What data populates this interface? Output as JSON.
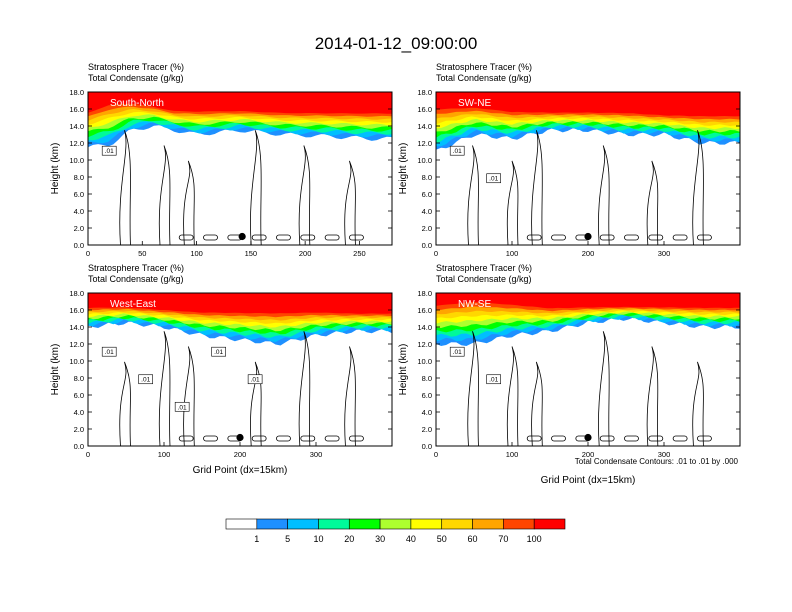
{
  "figure": {
    "title": "2014-01-12_09:00:00",
    "contour_note": "Total Condensate Contours: .01 to .01 by .000"
  },
  "colorbar": {
    "colors": [
      "#ffffff",
      "#1e90ff",
      "#00bfff",
      "#00fa9a",
      "#00ff00",
      "#adff2f",
      "#ffff00",
      "#ffd700",
      "#ffa500",
      "#ff4500",
      "#ff0000"
    ],
    "labels": [
      "1",
      "5",
      "10",
      "20",
      "30",
      "40",
      "50",
      "60",
      "70",
      "100"
    ]
  },
  "panels": [
    {
      "subtitle_line1": "Stratosphere Tracer   (%)",
      "subtitle_line2": "Total Condensate   (g/kg)",
      "section_label": "South-North",
      "ylabel": "Height (km)",
      "xlabel": "",
      "x_ticks": [
        "0",
        "50",
        "100",
        "150",
        "200",
        "250"
      ],
      "y_ticks": [
        "0.0",
        "2.0",
        "4.0",
        "6.0",
        "8.0",
        "10.0",
        "12.0",
        "14.0",
        "16.0",
        "18.0"
      ],
      "contour_labels": [
        ".01"
      ]
    },
    {
      "subtitle_line1": "Stratosphere Tracer   (%)",
      "subtitle_line2": "Total Condensate   (g/kg)",
      "section_label": "SW-NE",
      "ylabel": "Height (km)",
      "xlabel": "",
      "x_ticks": [
        "0",
        "100",
        "200",
        "300"
      ],
      "y_ticks": [
        "0.0",
        "2.0",
        "4.0",
        "6.0",
        "8.0",
        "10.0",
        "12.0",
        "14.0",
        "16.0",
        "18.0"
      ],
      "contour_labels": [
        ".01",
        ".01"
      ]
    },
    {
      "subtitle_line1": "Stratosphere Tracer   (%)",
      "subtitle_line2": "Total Condensate   (g/kg)",
      "section_label": "West-East",
      "ylabel": "Height (km)",
      "xlabel": "Grid Point (dx=15km)",
      "x_ticks": [
        "0",
        "100",
        "200",
        "300"
      ],
      "y_ticks": [
        "0.0",
        "2.0",
        "4.0",
        "6.0",
        "8.0",
        "10.0",
        "12.0",
        "14.0",
        "16.0",
        "18.0"
      ],
      "contour_labels": [
        ".01",
        ".01",
        ".01",
        ".01",
        ".01"
      ]
    },
    {
      "subtitle_line1": "Stratosphere Tracer   (%)",
      "subtitle_line2": "Total Condensate   (g/kg)",
      "section_label": "NW-SE",
      "ylabel": "Height (km)",
      "xlabel": "Grid Point (dx=15km)",
      "x_ticks": [
        "0",
        "100",
        "200",
        "300"
      ],
      "y_ticks": [
        "0.0",
        "2.0",
        "4.0",
        "6.0",
        "8.0",
        "10.0",
        "12.0",
        "14.0",
        "16.0",
        "18.0"
      ],
      "contour_labels": [
        ".01",
        ".01"
      ]
    }
  ],
  "chart_data": [
    {
      "type": "heatmap",
      "title": "2014-01-12_09:00:00",
      "panel": "South-North",
      "xlabel": "",
      "ylabel": "Height (km)",
      "xlim": [
        0,
        280
      ],
      "ylim": [
        0,
        18
      ],
      "tracer_levels_percent": [
        1,
        5,
        10,
        20,
        30,
        40,
        50,
        60,
        70,
        100
      ],
      "tracer_band_km": {
        "x": [
          0,
          20,
          40,
          60,
          80,
          100,
          140,
          180,
          220,
          260,
          280
        ],
        "top_over_90": [
          16.0,
          17.0,
          17.0,
          16.5,
          16.0,
          16.0,
          16.0,
          15.8,
          15.8,
          15.8,
          15.8
        ],
        "base_1": [
          11.5,
          11.8,
          13.5,
          14.0,
          13.5,
          13.0,
          13.5,
          13.0,
          12.8,
          12.5,
          12.5
        ]
      },
      "station_marker": {
        "x": 142,
        "y": 1.0
      }
    },
    {
      "type": "heatmap",
      "panel": "SW-NE",
      "xlabel": "",
      "ylabel": "Height (km)",
      "xlim": [
        0,
        400
      ],
      "ylim": [
        0,
        18
      ],
      "tracer_levels_percent": [
        1,
        5,
        10,
        20,
        30,
        40,
        50,
        60,
        70,
        100
      ],
      "tracer_band_km": {
        "x": [
          0,
          50,
          100,
          150,
          200,
          250,
          300,
          350,
          400
        ],
        "top_over_90": [
          16.5,
          16.5,
          16.0,
          15.8,
          15.8,
          15.8,
          15.5,
          15.5,
          15.5
        ],
        "base_1": [
          11.0,
          13.0,
          12.5,
          13.5,
          13.5,
          13.0,
          13.0,
          12.0,
          12.0
        ]
      },
      "station_marker": {
        "x": 200,
        "y": 1.0
      }
    },
    {
      "type": "heatmap",
      "panel": "West-East",
      "xlabel": "Grid Point (dx=15km)",
      "ylabel": "Height (km)",
      "xlim": [
        0,
        400
      ],
      "ylim": [
        0,
        18
      ],
      "tracer_levels_percent": [
        1,
        5,
        10,
        20,
        30,
        40,
        50,
        60,
        70,
        100
      ],
      "tracer_band_km": {
        "x": [
          0,
          50,
          100,
          150,
          200,
          250,
          300,
          350,
          400
        ],
        "top_over_90": [
          16.5,
          16.5,
          16.2,
          16.0,
          16.0,
          16.0,
          16.0,
          15.8,
          15.8
        ],
        "base_1": [
          14.0,
          14.5,
          14.0,
          13.0,
          12.5,
          12.0,
          13.0,
          13.5,
          13.5
        ]
      },
      "station_marker": {
        "x": 200,
        "y": 1.0
      }
    },
    {
      "type": "heatmap",
      "panel": "NW-SE",
      "xlabel": "Grid Point (dx=15km)",
      "ylabel": "Height (km)",
      "xlim": [
        0,
        400
      ],
      "ylim": [
        0,
        18
      ],
      "tracer_levels_percent": [
        1,
        5,
        10,
        20,
        30,
        40,
        50,
        60,
        70,
        100
      ],
      "tracer_band_km": {
        "x": [
          0,
          50,
          100,
          150,
          200,
          250,
          300,
          350,
          400
        ],
        "top_over_90": [
          17.0,
          17.5,
          17.0,
          16.5,
          16.5,
          16.5,
          16.5,
          16.5,
          16.5
        ],
        "base_1": [
          12.0,
          12.0,
          13.0,
          13.5,
          14.5,
          15.0,
          14.5,
          14.0,
          14.0
        ]
      },
      "station_marker": {
        "x": 200,
        "y": 1.0
      }
    }
  ]
}
